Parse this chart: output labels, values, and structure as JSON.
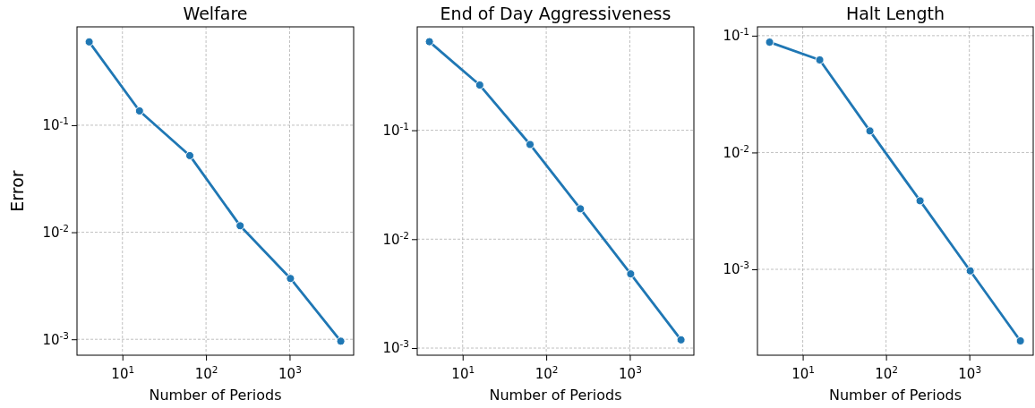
{
  "chart_data": [
    {
      "type": "line",
      "title": "Welfare",
      "xlabel": "Number of Periods",
      "ylabel": "Error",
      "log": "xy",
      "grid": true,
      "marker": "circle",
      "line_style": "solid",
      "x": [
        4,
        16,
        64,
        256,
        1024,
        4096
      ],
      "series": [
        {
          "color": "#1f77b4",
          "values": [
            0.6,
            0.136,
            0.052,
            0.0115,
            0.0037,
            0.00096
          ]
        }
      ],
      "xlim": [
        2.86,
        5840
      ],
      "ylim": [
        0.00071,
        0.83
      ],
      "xticks": [
        {
          "value": 10,
          "label": "10$^{1}$"
        },
        {
          "value": 100,
          "label": "10$^{2}$"
        },
        {
          "value": 1000,
          "label": "10$^{3}$"
        }
      ],
      "yticks": [
        {
          "value": 0.001,
          "label": "10$^{-3}$"
        },
        {
          "value": 0.01,
          "label": "10$^{-2}$"
        },
        {
          "value": 0.1,
          "label": "10$^{-1}$"
        }
      ]
    },
    {
      "type": "line",
      "title": "End of Day Aggressiveness",
      "xlabel": "Number of Periods",
      "log": "xy",
      "grid": true,
      "marker": "circle",
      "line_style": "solid",
      "x": [
        4,
        16,
        64,
        256,
        1024,
        4096
      ],
      "series": [
        {
          "color": "#1f77b4",
          "values": [
            0.65,
            0.26,
            0.074,
            0.019,
            0.0048,
            0.00119
          ]
        }
      ],
      "xlim": [
        2.86,
        5840
      ],
      "ylim": [
        0.00086,
        0.89
      ],
      "xticks": [
        {
          "value": 10,
          "label": "10$^{1}$"
        },
        {
          "value": 100,
          "label": "10$^{2}$"
        },
        {
          "value": 1000,
          "label": "10$^{3}$"
        }
      ],
      "yticks": [
        {
          "value": 0.001,
          "label": "10$^{-3}$"
        },
        {
          "value": 0.01,
          "label": "10$^{-2}$"
        },
        {
          "value": 0.1,
          "label": "10$^{-1}$"
        }
      ]
    },
    {
      "type": "line",
      "title": "Halt Length",
      "xlabel": "Number of Periods",
      "log": "xy",
      "grid": true,
      "marker": "circle",
      "line_style": "solid",
      "x": [
        4,
        16,
        64,
        256,
        1024,
        4096
      ],
      "series": [
        {
          "color": "#1f77b4",
          "values": [
            0.088,
            0.062,
            0.0153,
            0.00386,
            0.00097,
            0.000244
          ]
        }
      ],
      "xlim": [
        2.86,
        5840
      ],
      "ylim": [
        0.000184,
        0.119
      ],
      "xticks": [
        {
          "value": 10,
          "label": "10$^{1}$"
        },
        {
          "value": 100,
          "label": "10$^{2}$"
        },
        {
          "value": 1000,
          "label": "10$^{3}$"
        }
      ],
      "yticks": [
        {
          "value": 0.001,
          "label": "10$^{-3}$"
        },
        {
          "value": 0.01,
          "label": "10$^{-2}$"
        },
        {
          "value": 0.1,
          "label": "10$^{-1}$"
        }
      ]
    }
  ]
}
